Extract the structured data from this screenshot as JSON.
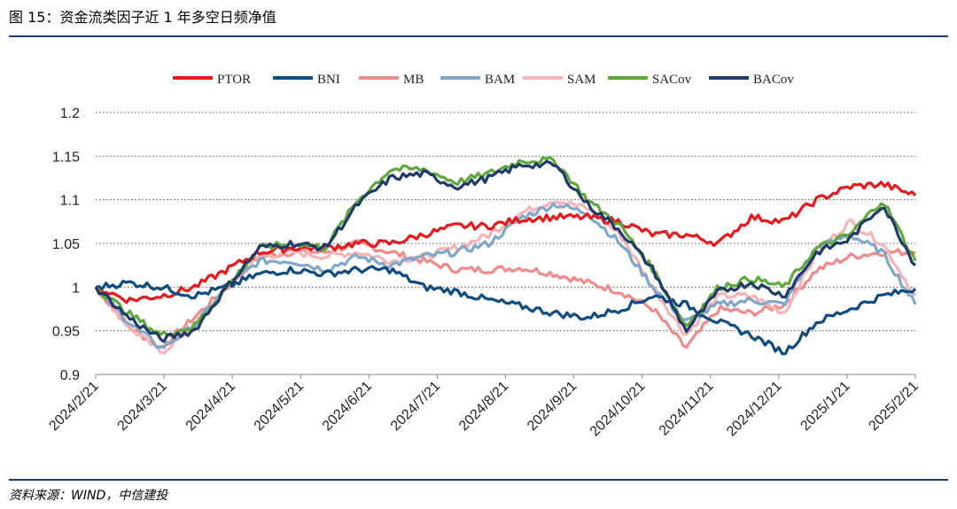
{
  "figure": {
    "title": "图 15：资金流类因子近 1 年多空日频净值",
    "source": "资料来源：WIND，中信建投"
  },
  "chart_data": {
    "type": "line",
    "title": "",
    "xlabel": "",
    "ylabel": "",
    "ylim": [
      0.9,
      1.2
    ],
    "yticks": [
      "0.9",
      "0.95",
      "1",
      "1.05",
      "1.1",
      "1.15",
      "1.2"
    ],
    "grid": "horizontal dotted",
    "legend_position": "top",
    "x_ticks": [
      "2024/2/21",
      "2024/3/21",
      "2024/4/21",
      "2024/5/21",
      "2024/6/21",
      "2024/7/21",
      "2024/8/21",
      "2024/9/21",
      "2024/10/21",
      "2024/11/21",
      "2024/12/21",
      "2025/1/21",
      "2025/2/21"
    ],
    "series": [
      {
        "name": "PTOR",
        "color": "#e8191c",
        "values": [
          1.0,
          0.985,
          0.99,
          1.0,
          1.02,
          1.04,
          1.045,
          1.045,
          1.05,
          1.05,
          1.06,
          1.07,
          1.07,
          1.078,
          1.08,
          1.08,
          1.075,
          1.06,
          1.06,
          1.05,
          1.08,
          1.075,
          1.1,
          1.115,
          1.118,
          1.105
        ]
      },
      {
        "name": "BNI",
        "color": "#0f4c81",
        "values": [
          1.0,
          1.005,
          1.0,
          0.99,
          1.0,
          1.015,
          1.02,
          1.015,
          1.02,
          1.02,
          1.0,
          0.995,
          0.985,
          0.978,
          0.97,
          0.965,
          0.975,
          0.99,
          0.98,
          0.96,
          0.945,
          0.925,
          0.96,
          0.975,
          0.99,
          0.998
        ]
      },
      {
        "name": "MB",
        "color": "#f28a8c",
        "values": [
          1.0,
          0.955,
          0.93,
          0.965,
          1.0,
          1.035,
          1.04,
          1.04,
          1.05,
          1.04,
          1.03,
          1.02,
          1.02,
          1.022,
          1.015,
          1.005,
          0.995,
          0.975,
          0.93,
          0.975,
          0.97,
          0.98,
          1.02,
          1.035,
          1.04,
          1.04
        ]
      },
      {
        "name": "BAM",
        "color": "#7fa7c9",
        "values": [
          1.0,
          0.96,
          0.93,
          0.955,
          1.0,
          1.03,
          1.03,
          1.02,
          1.035,
          1.025,
          1.035,
          1.04,
          1.05,
          1.08,
          1.095,
          1.085,
          1.05,
          1.0,
          0.96,
          0.98,
          0.985,
          0.98,
          1.045,
          1.06,
          1.04,
          0.98
        ]
      },
      {
        "name": "SAM",
        "color": "#f7b3b5",
        "values": [
          1.0,
          0.955,
          0.925,
          0.955,
          1.0,
          1.035,
          1.04,
          1.035,
          1.04,
          1.03,
          1.035,
          1.045,
          1.06,
          1.085,
          1.1,
          1.09,
          1.06,
          1.0,
          0.945,
          0.99,
          0.99,
          0.97,
          1.04,
          1.075,
          1.05,
          0.99
        ]
      },
      {
        "name": "SACov",
        "color": "#5fa83c",
        "values": [
          1.0,
          0.97,
          0.945,
          0.955,
          1.0,
          1.045,
          1.05,
          1.045,
          1.1,
          1.135,
          1.135,
          1.12,
          1.13,
          1.145,
          1.145,
          1.1,
          1.07,
          1.02,
          0.955,
          1.0,
          1.01,
          1.0,
          1.045,
          1.06,
          1.1,
          1.03
        ]
      },
      {
        "name": "BACov",
        "color": "#1f3a6b",
        "values": [
          1.0,
          0.965,
          0.94,
          0.95,
          1.0,
          1.045,
          1.05,
          1.045,
          1.095,
          1.125,
          1.13,
          1.115,
          1.125,
          1.14,
          1.14,
          1.095,
          1.065,
          1.02,
          0.95,
          0.995,
          1.005,
          0.99,
          1.04,
          1.055,
          1.095,
          1.025
        ]
      }
    ]
  }
}
